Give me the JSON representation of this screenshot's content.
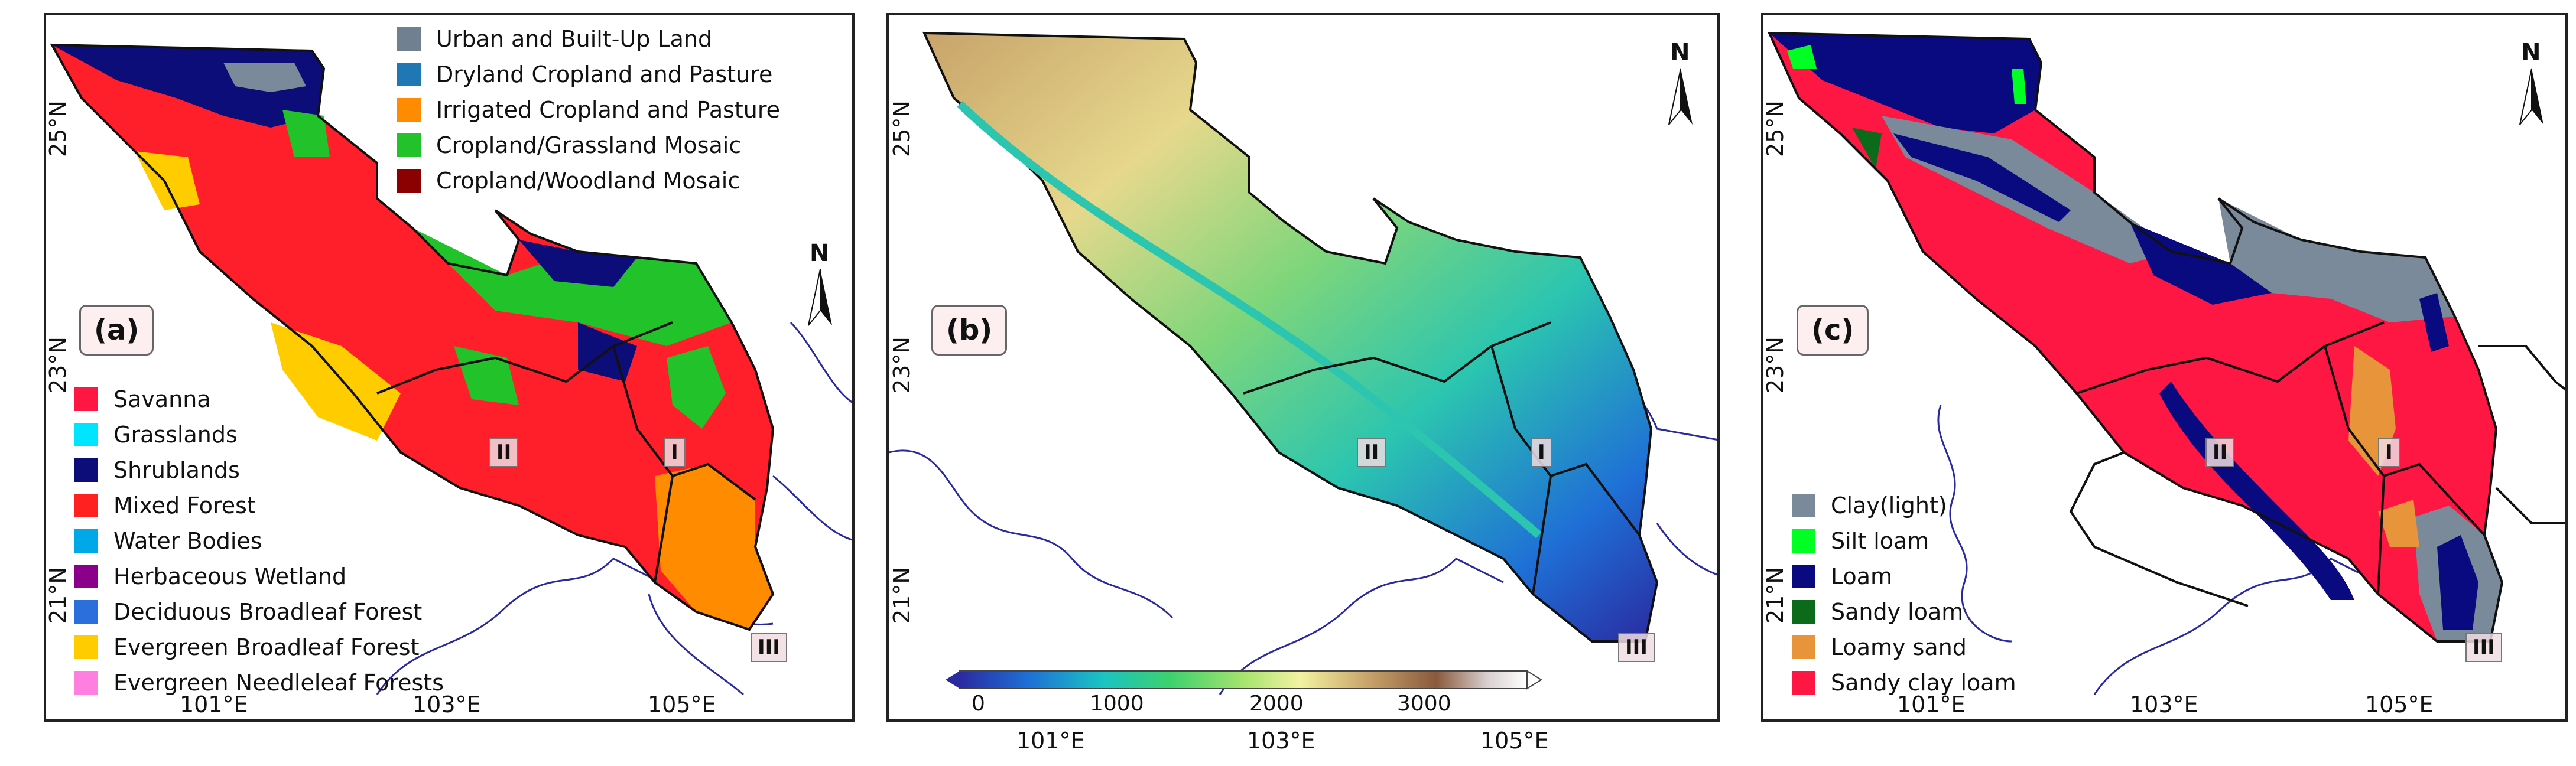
{
  "axes": {
    "lat_ticks": [
      "25°N",
      "23°N",
      "21°N"
    ],
    "lon_ticks": [
      "101°E",
      "103°E",
      "105°E"
    ]
  },
  "region_labels": [
    "I",
    "II",
    "III"
  ],
  "north_label": "N",
  "panel_a": {
    "label": "(a)",
    "legend_top": [
      {
        "label": "Urban and Built-Up Land",
        "color": "#708090"
      },
      {
        "label": "Dryland Cropland and Pasture",
        "color": "#1f78b4"
      },
      {
        "label": "Irrigated Cropland and Pasture",
        "color": "#ff8c00"
      },
      {
        "label": "Cropland/Grassland Mosaic",
        "color": "#22c22a"
      },
      {
        "label": "Cropland/Woodland Mosaic",
        "color": "#8b0000"
      }
    ],
    "legend_bottom": [
      {
        "label": "Savanna",
        "color": "#ff1744"
      },
      {
        "label": "Grasslands",
        "color": "#00e5ff"
      },
      {
        "label": "Shrublands",
        "color": "#0d0d7a"
      },
      {
        "label": "Mixed Forest",
        "color": "#ff2020"
      },
      {
        "label": "Water Bodies",
        "color": "#00a8e8"
      },
      {
        "label": "Herbaceous Wetland",
        "color": "#8b008b"
      },
      {
        "label": "Deciduous Broadleaf Forest",
        "color": "#2a6fdb"
      },
      {
        "label": "Evergreen Broadleaf Forest",
        "color": "#ffcc00"
      },
      {
        "label": "Evergreen Needleleaf Forests",
        "color": "#ff7fe0"
      }
    ]
  },
  "panel_b": {
    "label": "(b)",
    "colorbar_ticks": [
      "0",
      "1000",
      "2000",
      "3000"
    ],
    "colorbar_colors": [
      "#2a2aa0",
      "#1f6fd6",
      "#19c3c3",
      "#3cd16e",
      "#a6e36e",
      "#f2f2a0",
      "#c8a36a",
      "#8a5a3c",
      "#d9cfd0",
      "#ffffff"
    ]
  },
  "panel_c": {
    "label": "(c)",
    "legend": [
      {
        "label": "Clay(light)",
        "color": "#7a8a9a"
      },
      {
        "label": "Silt loam",
        "color": "#00ff22"
      },
      {
        "label": "Loam",
        "color": "#0a0a80"
      },
      {
        "label": "Sandy loam",
        "color": "#0b6b1a"
      },
      {
        "label": "Loamy sand",
        "color": "#e8943a"
      },
      {
        "label": "Sandy clay loam",
        "color": "#ff1744"
      }
    ]
  }
}
